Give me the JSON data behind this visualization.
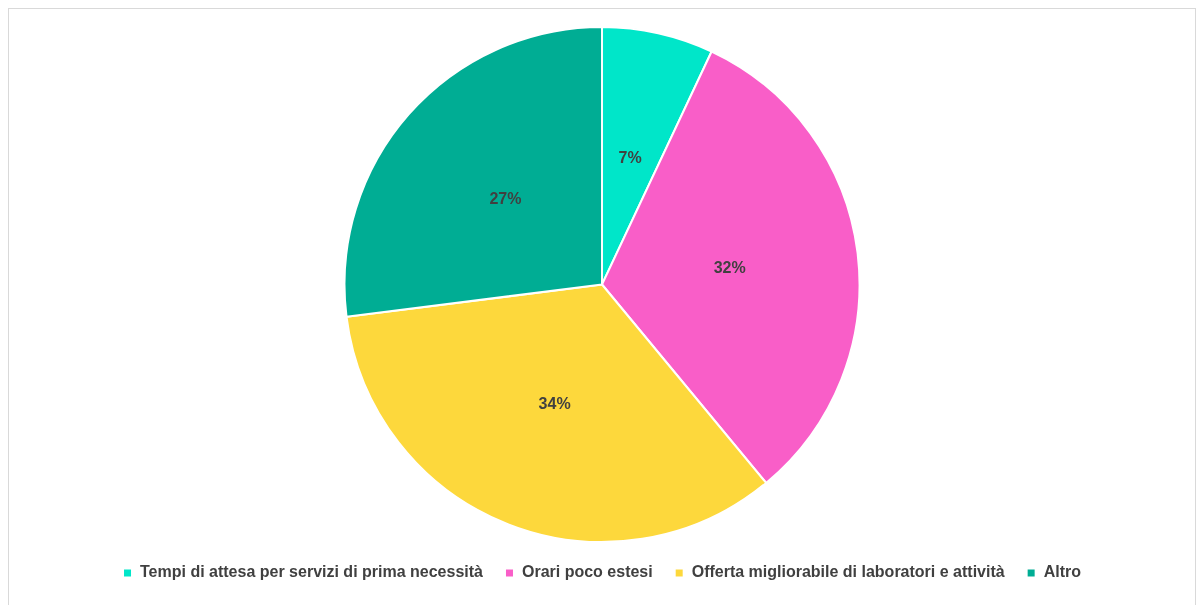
{
  "chart_data": {
    "type": "pie",
    "categories": [
      "Tempi di attesa per servizi di prima necessità",
      "Orari poco estesi",
      "Offerta migliorabile di laboratori e attività",
      "Altro"
    ],
    "values": [
      7,
      32,
      34,
      27
    ],
    "colors": [
      "#00e6c9",
      "#f95ec8",
      "#fdd83c",
      "#00ad94"
    ],
    "value_labels": [
      "7%",
      "32%",
      "34%",
      "27%"
    ],
    "legend": "bottom"
  }
}
